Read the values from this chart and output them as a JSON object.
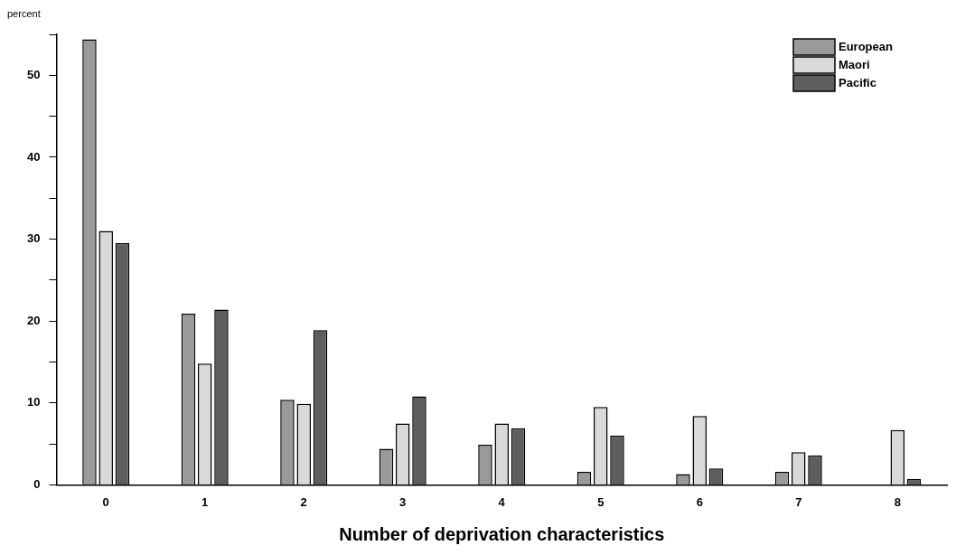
{
  "chart_data": {
    "type": "bar",
    "ylabel": "percent",
    "xlabel": "Number of deprivation characteristics",
    "categories": [
      "0",
      "1",
      "2",
      "3",
      "4",
      "5",
      "6",
      "7",
      "8"
    ],
    "series": [
      {
        "name": "European",
        "color": "#9a9a9a",
        "values": [
          54.4,
          20.9,
          10.4,
          4.4,
          4.9,
          1.6,
          1.3,
          1.6,
          0
        ]
      },
      {
        "name": "Maori",
        "color": "#d9d9d9",
        "values": [
          31.0,
          14.8,
          9.9,
          7.5,
          7.5,
          9.5,
          8.4,
          4.0,
          6.7
        ]
      },
      {
        "name": "Pacific",
        "color": "#5e5e5e",
        "values": [
          29.5,
          21.4,
          18.9,
          10.8,
          6.9,
          6.0,
          2.0,
          3.6,
          0.7
        ]
      }
    ],
    "ylim": [
      0,
      55
    ],
    "yticks": [
      0,
      {
        "value": 5,
        "label": null
      },
      10,
      {
        "value": 15,
        "label": null
      },
      20,
      {
        "value": 25,
        "label": null
      },
      30,
      {
        "value": 35,
        "label": null
      },
      40,
      {
        "value": 45,
        "label": null
      },
      50,
      {
        "value": 55,
        "label": null
      }
    ],
    "grid": false,
    "legend": "top right"
  }
}
